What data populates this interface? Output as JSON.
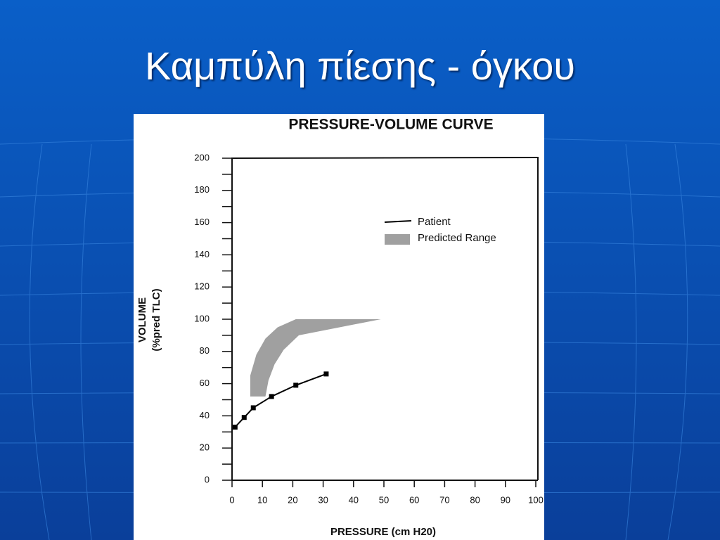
{
  "slide_title": "Καμπύλη πίεσης - όγκου",
  "chart_data": {
    "type": "line",
    "title": "PRESSURE-VOLUME CURVE",
    "x_label": "PRESSURE (cm H20)",
    "y_label": [
      "VOLUME",
      "(%pred TLC)"
    ],
    "xlim": [
      0,
      100
    ],
    "xticks": [
      0,
      10,
      20,
      30,
      40,
      50,
      60,
      70,
      80,
      90,
      100
    ],
    "ylim": [
      0,
      200
    ],
    "yticks": [
      0,
      20,
      40,
      60,
      80,
      100,
      120,
      140,
      160,
      180,
      200
    ],
    "legend": "upper right",
    "series": [
      {
        "name": "Patient",
        "color": "#000000",
        "x": [
          1,
          4,
          7,
          13,
          21,
          31
        ],
        "values": [
          33,
          39,
          45,
          52,
          59,
          66
        ]
      }
    ],
    "band": {
      "name": "Predicted Range",
      "color": "#a0a0a0",
      "upper_x": [
        6,
        6,
        8,
        11,
        15,
        21,
        49
      ],
      "upper_y": [
        52,
        65,
        78,
        88,
        95,
        100,
        100
      ],
      "lower_x": [
        11,
        12,
        14,
        17,
        22,
        49
      ],
      "lower_y": [
        52,
        62,
        72,
        81,
        90,
        100
      ]
    }
  }
}
